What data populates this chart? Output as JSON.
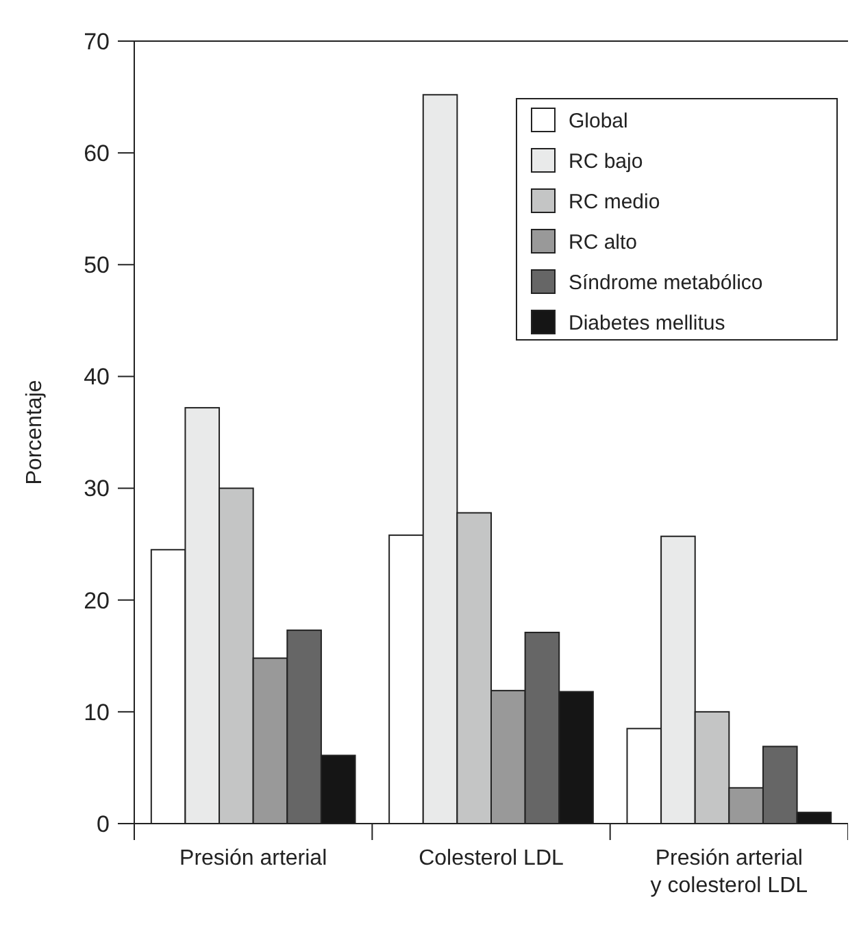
{
  "chart_data": {
    "type": "bar",
    "ylabel": "Porcentaje",
    "categories": [
      "Presión arterial",
      "Colesterol LDL",
      "Presión arterial\ny colesterol LDL"
    ],
    "series": [
      {
        "name": "Global",
        "color": "#ffffff",
        "values": [
          24.5,
          25.8,
          8.5
        ]
      },
      {
        "name": "RC bajo",
        "color": "#e9eaea",
        "values": [
          37.2,
          65.2,
          25.7
        ]
      },
      {
        "name": "RC medio",
        "color": "#c4c5c5",
        "values": [
          30.0,
          27.8,
          10.0
        ]
      },
      {
        "name": "RC alto",
        "color": "#999999",
        "values": [
          14.8,
          11.9,
          3.2
        ]
      },
      {
        "name": "Síndrome metabólico",
        "color": "#666666",
        "values": [
          17.3,
          17.1,
          6.9
        ]
      },
      {
        "name": "Diabetes mellitus",
        "color": "#151515",
        "values": [
          6.1,
          11.8,
          1.0
        ]
      }
    ],
    "ylim": [
      0,
      70
    ],
    "yticks": [
      0,
      10,
      20,
      30,
      40,
      50,
      60,
      70
    ],
    "grid": false,
    "legend": "top right"
  }
}
